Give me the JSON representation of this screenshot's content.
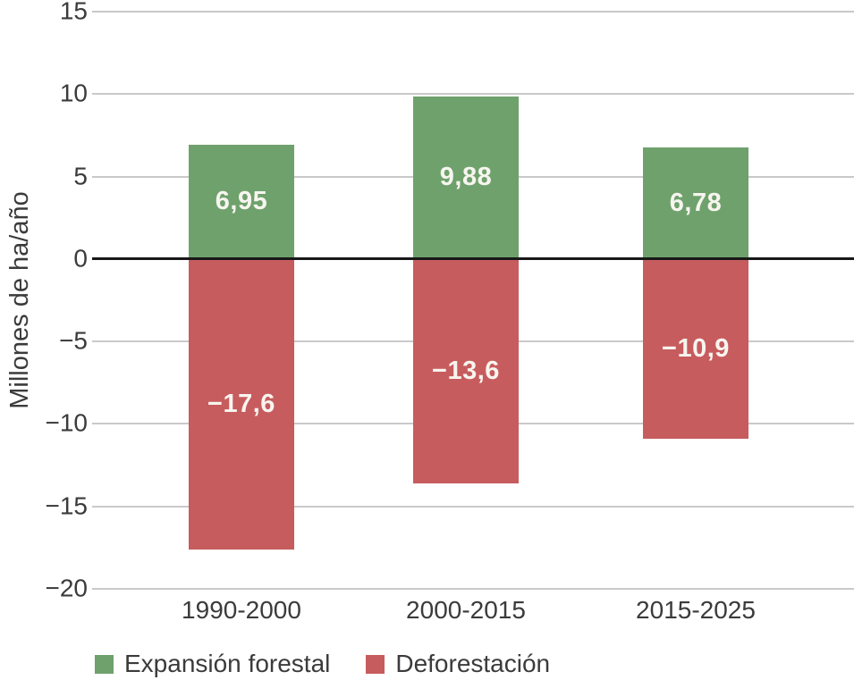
{
  "chart_data": {
    "type": "bar",
    "variant": "diverging-stacked",
    "categories": [
      "1990-2000",
      "2000-2015",
      "2015-2025"
    ],
    "series": [
      {
        "name": "Expansión forestal",
        "color": "#6fa16c",
        "values": [
          6.95,
          9.88,
          6.78
        ],
        "value_labels": [
          "6,95",
          "9,88",
          "6,78"
        ]
      },
      {
        "name": "Deforestación",
        "color": "#c75c5e",
        "values": [
          -17.6,
          -13.6,
          -10.9
        ],
        "value_labels": [
          "−17,6",
          "−13,6",
          "−10,9"
        ]
      }
    ],
    "ylabel": "Millones de ha/año",
    "ylim": [
      -20,
      15
    ],
    "yticks": [
      15,
      10,
      5,
      0,
      -5,
      -10,
      -15,
      -20
    ],
    "ytick_labels": [
      "15",
      "10",
      "5",
      "0",
      "−5",
      "−10",
      "−15",
      "−20"
    ],
    "grid": true,
    "zero_line": true,
    "legend_position": "bottom-left",
    "colors": {
      "grid": "#c9c9c9",
      "zero_line": "#181818",
      "axis_text": "#3b3b3b",
      "bar_value_text": "#f7f5ef",
      "background": "#ffffff"
    }
  }
}
